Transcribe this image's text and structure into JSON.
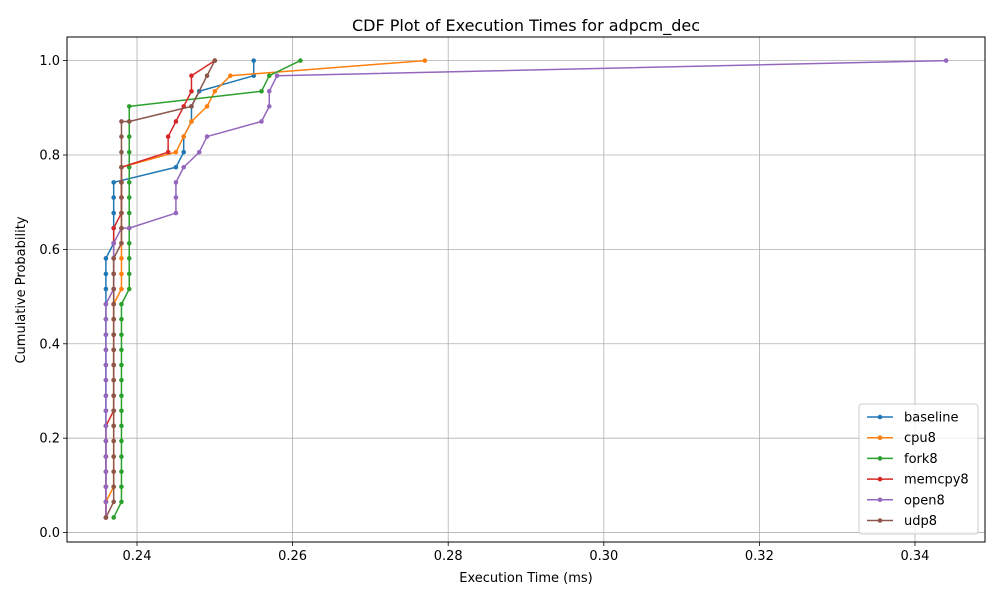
{
  "chart_data": {
    "type": "line",
    "title": "CDF Plot of Execution Times for adpcm_dec",
    "xlabel": "Execution Time (ms)",
    "ylabel": "Cumulative Probability",
    "xlim": [
      0.231,
      0.349
    ],
    "ylim": [
      -0.02,
      1.05
    ],
    "xticks": [
      0.24,
      0.26,
      0.28,
      0.3,
      0.32,
      0.34
    ],
    "xtick_labels": [
      "0.24",
      "0.26",
      "0.28",
      "0.30",
      "0.32",
      "0.34"
    ],
    "yticks": [
      0.0,
      0.2,
      0.4,
      0.6,
      0.8,
      1.0
    ],
    "ytick_labels": [
      "0.0",
      "0.2",
      "0.4",
      "0.6",
      "0.8",
      "1.0"
    ],
    "grid": true,
    "legend_position": "lower right",
    "series": [
      {
        "name": "baseline",
        "color": "#1f77b4",
        "x": [
          0.236,
          0.236,
          0.236,
          0.236,
          0.236,
          0.236,
          0.236,
          0.236,
          0.236,
          0.236,
          0.236,
          0.236,
          0.236,
          0.236,
          0.236,
          0.236,
          0.236,
          0.236,
          0.237,
          0.237,
          0.237,
          0.237,
          0.237,
          0.245,
          0.246,
          0.246,
          0.247,
          0.247,
          0.248,
          0.255,
          0.255
        ],
        "y": [
          0.032,
          0.065,
          0.097,
          0.129,
          0.161,
          0.194,
          0.226,
          0.258,
          0.29,
          0.323,
          0.355,
          0.387,
          0.419,
          0.452,
          0.484,
          0.516,
          0.548,
          0.581,
          0.613,
          0.645,
          0.677,
          0.71,
          0.742,
          0.774,
          0.806,
          0.839,
          0.871,
          0.903,
          0.935,
          0.968,
          1.0
        ]
      },
      {
        "name": "cpu8",
        "color": "#ff7f0e",
        "x": [
          0.236,
          0.236,
          0.237,
          0.237,
          0.237,
          0.237,
          0.237,
          0.237,
          0.237,
          0.237,
          0.237,
          0.237,
          0.237,
          0.237,
          0.237,
          0.238,
          0.238,
          0.238,
          0.238,
          0.238,
          0.238,
          0.238,
          0.238,
          0.238,
          0.245,
          0.246,
          0.247,
          0.249,
          0.25,
          0.252,
          0.277
        ],
        "y": [
          0.032,
          0.065,
          0.097,
          0.129,
          0.161,
          0.194,
          0.226,
          0.258,
          0.29,
          0.323,
          0.355,
          0.387,
          0.419,
          0.452,
          0.484,
          0.516,
          0.548,
          0.581,
          0.613,
          0.645,
          0.677,
          0.71,
          0.742,
          0.774,
          0.806,
          0.839,
          0.871,
          0.903,
          0.935,
          0.968,
          1.0
        ]
      },
      {
        "name": "fork8",
        "color": "#2ca02c",
        "x": [
          0.237,
          0.238,
          0.238,
          0.238,
          0.238,
          0.238,
          0.238,
          0.238,
          0.238,
          0.238,
          0.238,
          0.238,
          0.238,
          0.238,
          0.238,
          0.239,
          0.239,
          0.239,
          0.239,
          0.239,
          0.239,
          0.239,
          0.239,
          0.239,
          0.239,
          0.239,
          0.239,
          0.239,
          0.256,
          0.257,
          0.261
        ],
        "y": [
          0.032,
          0.065,
          0.097,
          0.129,
          0.161,
          0.194,
          0.226,
          0.258,
          0.29,
          0.323,
          0.355,
          0.387,
          0.419,
          0.452,
          0.484,
          0.516,
          0.548,
          0.581,
          0.613,
          0.645,
          0.677,
          0.71,
          0.742,
          0.774,
          0.806,
          0.839,
          0.871,
          0.903,
          0.935,
          0.968,
          1.0
        ]
      },
      {
        "name": "memcpy8",
        "color": "#d62728",
        "x": [
          0.236,
          0.236,
          0.236,
          0.236,
          0.236,
          0.236,
          0.236,
          0.237,
          0.237,
          0.237,
          0.237,
          0.237,
          0.237,
          0.237,
          0.237,
          0.237,
          0.237,
          0.237,
          0.237,
          0.237,
          0.238,
          0.238,
          0.238,
          0.238,
          0.244,
          0.244,
          0.245,
          0.246,
          0.247,
          0.247,
          0.25
        ],
        "y": [
          0.032,
          0.065,
          0.097,
          0.129,
          0.161,
          0.194,
          0.226,
          0.258,
          0.29,
          0.323,
          0.355,
          0.387,
          0.419,
          0.452,
          0.484,
          0.516,
          0.548,
          0.581,
          0.613,
          0.645,
          0.677,
          0.71,
          0.742,
          0.774,
          0.806,
          0.839,
          0.871,
          0.903,
          0.935,
          0.968,
          1.0
        ]
      },
      {
        "name": "open8",
        "color": "#9467bd",
        "x": [
          0.236,
          0.236,
          0.236,
          0.236,
          0.236,
          0.236,
          0.236,
          0.236,
          0.236,
          0.236,
          0.236,
          0.236,
          0.236,
          0.236,
          0.236,
          0.237,
          0.237,
          0.237,
          0.237,
          0.238,
          0.239,
          0.245,
          0.245,
          0.245,
          0.246,
          0.248,
          0.249,
          0.256,
          0.257,
          0.257,
          0.258,
          0.344
        ],
        "y": [
          0.032,
          0.065,
          0.097,
          0.129,
          0.161,
          0.194,
          0.226,
          0.258,
          0.29,
          0.323,
          0.355,
          0.387,
          0.419,
          0.452,
          0.484,
          0.516,
          0.548,
          0.581,
          0.613,
          0.645,
          0.645,
          0.677,
          0.71,
          0.742,
          0.774,
          0.806,
          0.839,
          0.871,
          0.903,
          0.935,
          0.968,
          1.0
        ]
      },
      {
        "name": "udp8",
        "color": "#8c564b",
        "x": [
          0.236,
          0.237,
          0.237,
          0.237,
          0.237,
          0.237,
          0.237,
          0.237,
          0.237,
          0.237,
          0.237,
          0.237,
          0.237,
          0.237,
          0.237,
          0.237,
          0.237,
          0.237,
          0.238,
          0.238,
          0.238,
          0.238,
          0.238,
          0.238,
          0.238,
          0.238,
          0.238,
          0.239,
          0.247,
          0.249,
          0.25
        ],
        "y": [
          0.032,
          0.065,
          0.097,
          0.129,
          0.161,
          0.194,
          0.226,
          0.258,
          0.29,
          0.323,
          0.355,
          0.387,
          0.419,
          0.452,
          0.484,
          0.516,
          0.548,
          0.581,
          0.613,
          0.645,
          0.677,
          0.71,
          0.742,
          0.774,
          0.806,
          0.839,
          0.871,
          0.871,
          0.903,
          0.968,
          1.0
        ]
      }
    ]
  }
}
